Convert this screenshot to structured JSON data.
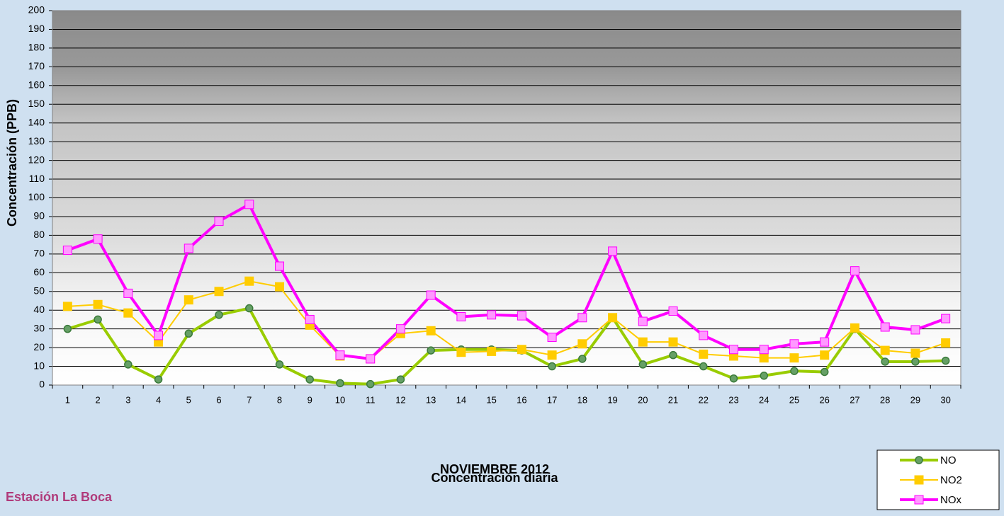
{
  "chart_data": {
    "type": "line",
    "title": "NOVIEMBRE 2012",
    "subtitle": "Concentración diaria",
    "y_label": "Concentración  (PPB)",
    "annotation": "Estación La Boca",
    "categories": [
      "1",
      "2",
      "3",
      "4",
      "5",
      "6",
      "7",
      "8",
      "9",
      "10",
      "11",
      "12",
      "13",
      "14",
      "15",
      "16",
      "17",
      "18",
      "19",
      "20",
      "21",
      "22",
      "23",
      "24",
      "25",
      "26",
      "27",
      "28",
      "29",
      "30"
    ],
    "series": [
      {
        "name": "NO",
        "color": "#99cc00",
        "marker": "circle",
        "marker_color": "#66a066",
        "values": [
          30,
          35,
          11,
          3,
          27.5,
          37.5,
          41,
          11,
          3,
          1,
          0.5,
          3,
          18.5,
          19,
          19,
          18.5,
          10,
          14,
          36,
          11,
          16,
          10,
          3.5,
          5,
          7.5,
          7,
          30,
          12.5,
          12.5,
          13
        ]
      },
      {
        "name": "NO2",
        "color": "#ffcc00",
        "marker": "square",
        "marker_color": "#ffcc00",
        "values": [
          42,
          43,
          38.5,
          23,
          45.5,
          50,
          55.5,
          52.5,
          32,
          15.5,
          14,
          27.5,
          29,
          17.5,
          18,
          19,
          16,
          22,
          36,
          23,
          23,
          16.5,
          15.5,
          14.5,
          14.5,
          16,
          30.5,
          18.5,
          17,
          22.5
        ]
      },
      {
        "name": "NOx",
        "color": "#ff00ff",
        "marker": "square",
        "marker_color": "#ff99ff",
        "values": [
          72,
          78,
          49,
          26.5,
          73,
          87.5,
          96.5,
          63.5,
          35,
          16,
          14,
          30,
          48,
          36.5,
          37.5,
          37,
          25.5,
          36,
          71.5,
          34,
          39.5,
          26.5,
          19,
          19,
          22,
          23,
          61,
          31,
          29.5,
          35.5
        ]
      }
    ],
    "ylim": [
      0,
      200
    ],
    "yticks": [
      0,
      10,
      20,
      30,
      40,
      50,
      60,
      70,
      80,
      90,
      100,
      110,
      120,
      130,
      140,
      150,
      160,
      170,
      180,
      190,
      200
    ],
    "grid": true,
    "legend": "bottom-right"
  }
}
